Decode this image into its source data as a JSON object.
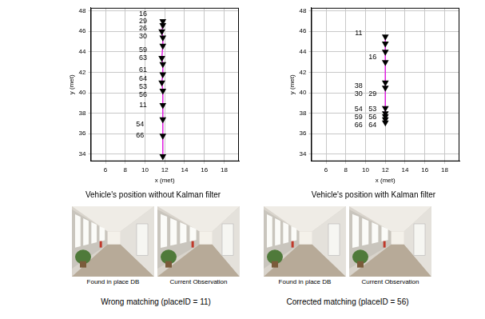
{
  "chart_data": [
    {
      "type": "scatter",
      "title": "Vehicle's position without Kalman filter",
      "x_label": "x (met)",
      "y_label": "y (met)",
      "x": [
        11.8,
        11.8,
        11.7,
        11.8,
        11.8,
        11.7,
        11.8,
        11.8,
        11.7,
        11.8,
        11.8,
        11.8,
        11.8,
        11.8
      ],
      "values": [
        47,
        46.6,
        46,
        45.4,
        44.6,
        43.4,
        42.8,
        41.8,
        41,
        40.2,
        38.8,
        37.4,
        35.8,
        33.8
      ],
      "color": "#e020e0",
      "marker": "triangle",
      "line_style": "solid",
      "annotations": [
        {
          "text": "16",
          "x": 9.8,
          "y": 47.7
        },
        {
          "text": "29",
          "x": 9.8,
          "y": 47.0
        },
        {
          "text": "26",
          "x": 9.8,
          "y": 46.3
        },
        {
          "text": "30",
          "x": 9.8,
          "y": 45.5
        },
        {
          "text": "59",
          "x": 9.8,
          "y": 44.2
        },
        {
          "text": "63",
          "x": 9.8,
          "y": 43.4
        },
        {
          "text": "61",
          "x": 9.8,
          "y": 42.2
        },
        {
          "text": "64",
          "x": 9.8,
          "y": 41.4
        },
        {
          "text": "53",
          "x": 9.8,
          "y": 40.6
        },
        {
          "text": "56",
          "x": 9.8,
          "y": 39.8
        },
        {
          "text": "11",
          "x": 9.8,
          "y": 38.8
        },
        {
          "text": "54",
          "x": 9.5,
          "y": 36.9
        },
        {
          "text": "66",
          "x": 9.5,
          "y": 35.8
        }
      ],
      "xlim": [
        4.5,
        19.5
      ],
      "ylim": [
        33.3,
        48.3
      ],
      "xticks": [
        6,
        8,
        10,
        12,
        14,
        16,
        18
      ],
      "yticks": [
        34,
        36,
        38,
        40,
        42,
        44,
        46,
        48
      ],
      "grid": true
    },
    {
      "type": "scatter",
      "title": "Vehicle's position with Kalman filter",
      "x_label": "x (met)",
      "y_label": "y (met)",
      "x": [
        12.0,
        12.0,
        12.0,
        12.0,
        12.0,
        12.0,
        12.0,
        12.0,
        12.0,
        12.0,
        12.0
      ],
      "values": [
        45.5,
        44.8,
        44.0,
        43.0,
        41.0,
        40.5,
        38.5,
        38.0,
        37.7,
        37.4,
        37.1
      ],
      "color": "#e020e0",
      "marker": "triangle",
      "line_style": "solid",
      "annotations": [
        {
          "text": "11",
          "x": 9.3,
          "y": 45.8
        },
        {
          "text": "16",
          "x": 10.7,
          "y": 43.5
        },
        {
          "text": "38",
          "x": 9.3,
          "y": 40.7
        },
        {
          "text": "30",
          "x": 9.3,
          "y": 39.9
        },
        {
          "text": "29",
          "x": 10.7,
          "y": 39.9
        },
        {
          "text": "54",
          "x": 9.3,
          "y": 38.4
        },
        {
          "text": "59",
          "x": 9.3,
          "y": 37.6
        },
        {
          "text": "66",
          "x": 9.3,
          "y": 36.8
        },
        {
          "text": "53",
          "x": 10.7,
          "y": 38.4
        },
        {
          "text": "56",
          "x": 10.7,
          "y": 37.6
        },
        {
          "text": "64",
          "x": 10.7,
          "y": 36.8
        }
      ],
      "xlim": [
        4.5,
        19.5
      ],
      "ylim": [
        33.3,
        48.3
      ],
      "xticks": [
        6,
        8,
        10,
        12,
        14,
        16,
        18
      ],
      "yticks": [
        34,
        36,
        38,
        40,
        42,
        44,
        46,
        48
      ],
      "grid": true
    }
  ],
  "photo_pairs": [
    {
      "left": "Found in place DB",
      "right": "Current Observation",
      "caption": "Wrong matching (placeID = 11)"
    },
    {
      "left": "Found in place DB",
      "right": "Current Observation",
      "caption": "Corrected matching (placeID = 56)"
    }
  ]
}
